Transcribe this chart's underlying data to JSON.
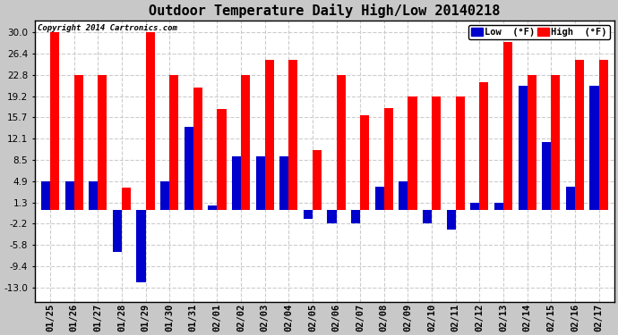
{
  "title": "Outdoor Temperature Daily High/Low 20140218",
  "copyright": "Copyright 2014 Cartronics.com",
  "dates": [
    "01/25",
    "01/26",
    "01/27",
    "01/28",
    "01/29",
    "01/30",
    "01/31",
    "02/01",
    "02/02",
    "02/03",
    "02/04",
    "02/05",
    "02/06",
    "02/07",
    "02/08",
    "02/09",
    "02/10",
    "02/11",
    "02/12",
    "02/13",
    "02/14",
    "02/15",
    "02/16",
    "02/17"
  ],
  "highs": [
    30.0,
    22.8,
    22.8,
    3.8,
    30.0,
    22.8,
    20.6,
    17.0,
    22.8,
    25.4,
    25.4,
    10.2,
    22.8,
    16.0,
    17.2,
    19.2,
    19.2,
    19.2,
    21.6,
    28.4,
    22.8,
    22.8,
    25.4,
    25.4
  ],
  "lows": [
    4.9,
    4.9,
    4.9,
    -7.0,
    -12.2,
    4.9,
    14.0,
    0.8,
    9.0,
    9.0,
    9.0,
    -1.5,
    -2.2,
    -2.2,
    4.0,
    4.9,
    -2.2,
    -3.2,
    1.3,
    1.3,
    21.0,
    11.5,
    4.0,
    21.0
  ],
  "high_color": "#ff0000",
  "low_color": "#0000cc",
  "bg_color": "#c8c8c8",
  "plot_bg": "#ffffff",
  "grid_color": "#cccccc",
  "yticks": [
    -13.0,
    -9.4,
    -5.8,
    -2.2,
    1.3,
    4.9,
    8.5,
    12.1,
    15.7,
    19.2,
    22.8,
    26.4,
    30.0
  ],
  "ylim": [
    -15.5,
    32.0
  ],
  "ylabel_low": "Low  (°F)",
  "ylabel_high": "High  (°F)",
  "title_fontsize": 11,
  "copyright_fontsize": 6.5,
  "tick_fontsize": 7.5,
  "bar_width": 0.38
}
